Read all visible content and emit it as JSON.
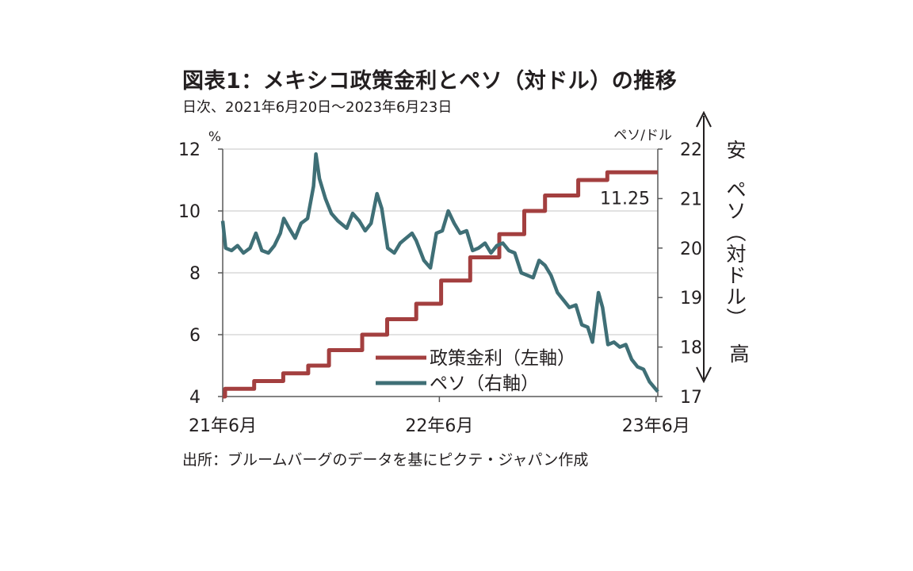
{
  "header": {
    "title": "図表1：メキシコ政策金利とペソ（対ドル）の推移",
    "subtitle": "日次、2021年6月20日～2023年6月23日"
  },
  "footer": {
    "source": "出所：ブルームバーグのデータを基にピクテ・ジャパン作成"
  },
  "colors": {
    "policy_rate": "#a33f3f",
    "peso": "#3f6f76",
    "grid": "#d9d9d9",
    "axis": "#595959"
  },
  "chart_data": {
    "type": "line",
    "x_range": [
      "2021-06-20",
      "2023-06-23"
    ],
    "x_ticks": [
      {
        "date": "2021-06-20",
        "label": "21年6月"
      },
      {
        "date": "2022-06-20",
        "label": "22年6月"
      },
      {
        "date": "2023-06-20",
        "label": "23年6月"
      }
    ],
    "left_axis": {
      "unit": "%",
      "ylim": [
        4,
        12
      ],
      "ticks": [
        4,
        6,
        8,
        10,
        12
      ]
    },
    "right_axis": {
      "unit": "ペソ/ドル",
      "ylim": [
        17,
        22
      ],
      "ticks": [
        17,
        18,
        19,
        20,
        21,
        22
      ]
    },
    "right_annotation": {
      "top": "安",
      "middle": "ペソ（対ドル）",
      "bottom": "高"
    },
    "grid": true,
    "legend_position": "bottom-center",
    "series": [
      {
        "name": "政策金利（左軸）",
        "axis": "left",
        "step": true,
        "points": [
          [
            "2021-06-20",
            4.0
          ],
          [
            "2021-06-24",
            4.25
          ],
          [
            "2021-08-12",
            4.5
          ],
          [
            "2021-09-30",
            4.75
          ],
          [
            "2021-11-11",
            5.0
          ],
          [
            "2021-12-16",
            5.5
          ],
          [
            "2022-02-10",
            6.0
          ],
          [
            "2022-03-24",
            6.5
          ],
          [
            "2022-05-12",
            7.0
          ],
          [
            "2022-06-23",
            7.75
          ],
          [
            "2022-08-11",
            8.5
          ],
          [
            "2022-09-29",
            9.25
          ],
          [
            "2022-11-10",
            10.0
          ],
          [
            "2022-12-15",
            10.5
          ],
          [
            "2023-02-09",
            11.0
          ],
          [
            "2023-03-30",
            11.25
          ],
          [
            "2023-06-23",
            11.25
          ]
        ],
        "end_label": "11.25"
      },
      {
        "name": "ペソ（右軸）",
        "axis": "right",
        "points": [
          [
            "2021-06-20",
            20.55
          ],
          [
            "2021-06-25",
            20.0
          ],
          [
            "2021-07-05",
            19.95
          ],
          [
            "2021-07-15",
            20.05
          ],
          [
            "2021-07-25",
            19.9
          ],
          [
            "2021-08-05",
            20.0
          ],
          [
            "2021-08-15",
            20.3
          ],
          [
            "2021-08-25",
            19.95
          ],
          [
            "2021-09-05",
            19.9
          ],
          [
            "2021-09-15",
            20.05
          ],
          [
            "2021-09-25",
            20.3
          ],
          [
            "2021-10-01",
            20.6
          ],
          [
            "2021-10-10",
            20.4
          ],
          [
            "2021-10-20",
            20.2
          ],
          [
            "2021-10-30",
            20.5
          ],
          [
            "2021-11-10",
            20.6
          ],
          [
            "2021-11-20",
            21.25
          ],
          [
            "2021-11-24",
            21.9
          ],
          [
            "2021-11-30",
            21.4
          ],
          [
            "2021-12-10",
            21.0
          ],
          [
            "2021-12-20",
            20.7
          ],
          [
            "2021-12-31",
            20.55
          ],
          [
            "2022-01-15",
            20.4
          ],
          [
            "2022-01-25",
            20.7
          ],
          [
            "2022-02-05",
            20.55
          ],
          [
            "2022-02-15",
            20.35
          ],
          [
            "2022-02-25",
            20.5
          ],
          [
            "2022-03-07",
            21.1
          ],
          [
            "2022-03-15",
            20.8
          ],
          [
            "2022-03-25",
            20.0
          ],
          [
            "2022-04-05",
            19.9
          ],
          [
            "2022-04-15",
            20.1
          ],
          [
            "2022-04-25",
            20.2
          ],
          [
            "2022-05-05",
            20.3
          ],
          [
            "2022-05-12",
            20.15
          ],
          [
            "2022-05-25",
            19.75
          ],
          [
            "2022-06-05",
            19.6
          ],
          [
            "2022-06-15",
            20.3
          ],
          [
            "2022-06-25",
            20.35
          ],
          [
            "2022-07-05",
            20.75
          ],
          [
            "2022-07-15",
            20.5
          ],
          [
            "2022-07-25",
            20.3
          ],
          [
            "2022-08-05",
            20.35
          ],
          [
            "2022-08-15",
            19.95
          ],
          [
            "2022-08-25",
            20.0
          ],
          [
            "2022-09-05",
            20.1
          ],
          [
            "2022-09-15",
            19.9
          ],
          [
            "2022-09-25",
            20.05
          ],
          [
            "2022-10-05",
            20.1
          ],
          [
            "2022-10-15",
            19.95
          ],
          [
            "2022-10-25",
            19.9
          ],
          [
            "2022-11-05",
            19.5
          ],
          [
            "2022-11-15",
            19.45
          ],
          [
            "2022-11-25",
            19.4
          ],
          [
            "2022-12-05",
            19.75
          ],
          [
            "2022-12-15",
            19.65
          ],
          [
            "2022-12-25",
            19.45
          ],
          [
            "2023-01-05",
            19.1
          ],
          [
            "2023-01-15",
            18.95
          ],
          [
            "2023-01-25",
            18.8
          ],
          [
            "2023-02-05",
            18.85
          ],
          [
            "2023-02-15",
            18.45
          ],
          [
            "2023-02-25",
            18.4
          ],
          [
            "2023-03-05",
            18.1
          ],
          [
            "2023-03-15",
            19.1
          ],
          [
            "2023-03-22",
            18.8
          ],
          [
            "2023-03-31",
            18.05
          ],
          [
            "2023-04-10",
            18.1
          ],
          [
            "2023-04-20",
            18.0
          ],
          [
            "2023-04-30",
            18.05
          ],
          [
            "2023-05-10",
            17.75
          ],
          [
            "2023-05-20",
            17.6
          ],
          [
            "2023-05-30",
            17.55
          ],
          [
            "2023-06-09",
            17.3
          ],
          [
            "2023-06-23",
            17.1
          ]
        ]
      }
    ]
  }
}
